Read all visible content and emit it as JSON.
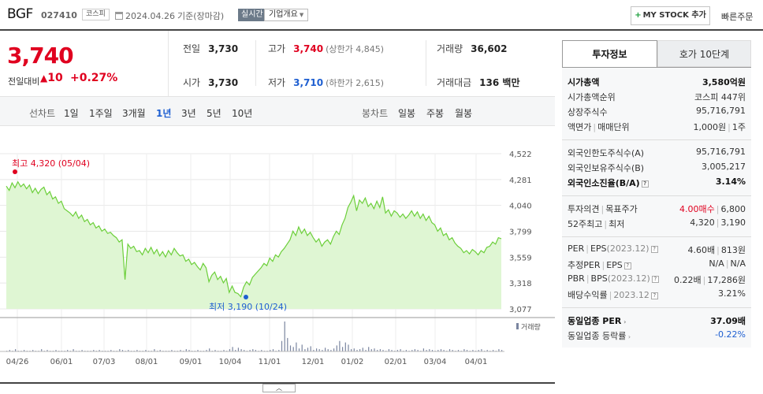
{
  "header": {
    "name": "BGF",
    "code": "027410",
    "market": "코스피",
    "date": "2024.04.26",
    "basis": "기준(장마감)",
    "realtime": "실시간",
    "company_overview": "기업개요",
    "mystock_label": "MY STOCK 추가",
    "quick_order": "빠른주문"
  },
  "price": {
    "current": "3,740",
    "compare_label": "전일대비",
    "change": "10",
    "change_rate": "+0.27%"
  },
  "quotes": {
    "prev_label": "전일",
    "prev": "3,730",
    "high_label": "고가",
    "high": "3,740",
    "upper_limit": "(상한가 4,845)",
    "volume_label": "거래량",
    "volume": "36,602",
    "open_label": "시가",
    "open": "3,730",
    "low_label": "저가",
    "low": "3,710",
    "lower_limit": "(하한가 2,615)",
    "amount_label": "거래대금",
    "amount": "136 백만"
  },
  "periods": {
    "line_chart_label": "선차트",
    "line_items": [
      "1일",
      "1주일",
      "3개월",
      "1년",
      "3년",
      "5년",
      "10년"
    ],
    "active": "1년",
    "candle_chart_label": "봉차트",
    "candle_items": [
      "일봉",
      "주봉",
      "월봉"
    ]
  },
  "chart_data": {
    "type": "area",
    "x_tick_labels": [
      "04/26",
      "06/01",
      "07/03",
      "08/01",
      "09/01",
      "10/04",
      "11/01",
      "12/01",
      "01/02",
      "02/01",
      "03/04",
      "04/01"
    ],
    "y_tick_labels": [
      "4,522",
      "4,281",
      "4,040",
      "3,799",
      "3,559",
      "3,318",
      "3,077"
    ],
    "ylim": [
      3077,
      4522
    ],
    "series": [
      {
        "values": [
          4220,
          4180,
          4250,
          4205,
          4260,
          4215,
          4240,
          4195,
          4230,
          4160,
          4200,
          4150,
          4190,
          4210,
          4140,
          4170,
          4100,
          4120,
          4060,
          4080,
          4010,
          3990,
          3970,
          3940,
          3980,
          3920,
          3950,
          3890,
          3910,
          3860,
          3880,
          3830,
          3850,
          3800,
          3820,
          3780,
          3790,
          3760,
          3740,
          3700,
          3720,
          3350,
          3680,
          3640,
          3660,
          3610,
          3620,
          3580,
          3640,
          3600,
          3650,
          3590,
          3630,
          3570,
          3610,
          3560,
          3620,
          3580,
          3640,
          3600,
          3570,
          3580,
          3520,
          3540,
          3490,
          3510,
          3470,
          3440,
          3500,
          3460,
          3330,
          3390,
          3420,
          3350,
          3380,
          3320,
          3360,
          3230,
          3290,
          3230,
          3220,
          3190,
          3280,
          3330,
          3300,
          3370,
          3400,
          3430,
          3460,
          3500,
          3480,
          3550,
          3520,
          3580,
          3560,
          3610,
          3640,
          3680,
          3720,
          3800,
          3760,
          3840,
          3780,
          3820,
          3760,
          3790,
          3740,
          3700,
          3730,
          3660,
          3700,
          3720,
          3680,
          3750,
          3800,
          3770,
          3860,
          3920,
          4020,
          4070,
          4130,
          3990,
          4090,
          4060,
          4110,
          4030,
          4060,
          4010,
          4080,
          4020,
          4120,
          3970,
          4000,
          3940,
          3990,
          3970,
          3930,
          3960,
          3920,
          3950,
          3990,
          3940,
          3980,
          3920,
          3960,
          3900,
          3940,
          3880,
          3860,
          3800,
          3830,
          3760,
          3780,
          3720,
          3740,
          3690,
          3660,
          3640,
          3600,
          3620,
          3590,
          3630,
          3610,
          3580,
          3620,
          3600,
          3650,
          3660,
          3700,
          3680,
          3740,
          3730
        ],
        "max_label": "최고 4,320 (05/04)",
        "min_label": "최저 3,190 (10/24)"
      }
    ],
    "volume_label": "거래량",
    "volume_values": [
      1,
      2,
      1,
      3,
      1,
      1,
      2,
      1,
      1,
      2,
      1,
      1,
      3,
      1,
      2,
      1,
      1,
      2,
      1,
      1,
      1,
      2,
      1,
      3,
      1,
      1,
      2,
      1,
      1,
      1,
      2,
      1,
      2,
      1,
      1,
      1,
      2,
      1,
      1,
      3,
      2,
      1,
      2,
      1,
      1,
      2,
      1,
      1,
      2,
      1,
      1,
      3,
      1,
      2,
      1,
      1,
      1,
      2,
      1,
      1,
      2,
      1,
      3,
      2,
      1,
      1,
      2,
      1,
      1,
      2,
      4,
      1,
      2,
      1,
      1,
      2,
      1,
      3,
      6,
      2,
      5,
      3,
      2,
      1,
      2,
      3,
      2,
      1,
      2,
      1,
      1,
      2,
      3,
      1,
      2,
      14,
      40,
      18,
      8,
      6,
      12,
      4,
      9,
      3,
      5,
      7,
      2,
      4,
      3,
      2,
      5,
      3,
      2,
      4,
      8,
      14,
      6,
      12,
      9,
      3,
      4,
      2,
      3,
      5,
      2,
      6,
      3,
      4,
      2,
      3,
      2,
      1,
      3,
      2,
      1,
      2,
      3,
      1,
      2,
      1,
      2,
      3,
      2,
      1,
      4,
      2,
      3,
      2,
      1,
      2,
      3,
      2,
      1,
      3,
      2,
      1,
      2,
      1,
      3,
      2,
      1,
      2,
      1,
      2,
      3,
      1,
      2,
      1,
      2,
      1,
      3,
      2
    ]
  },
  "info_tabs": [
    "투자정보",
    "호가 10단계"
  ],
  "info": {
    "market_cap_label": "시가총액",
    "market_cap": "3,580억원",
    "cap_rank_label": "시가총액순위",
    "cap_rank": "코스피 447위",
    "shares_label": "상장주식수",
    "shares": "95,716,791",
    "facevalue_label": "액면가",
    "unit_label": "매매단위",
    "facevalue": "1,000원",
    "unit": "1주",
    "foreign_limit_label": "외국인한도주식수(A)",
    "foreign_limit": "95,716,791",
    "foreign_hold_label": "외국인보유주식수(B)",
    "foreign_hold": "3,005,217",
    "foreign_ratio_label": "외국인소진율(B/A)",
    "foreign_ratio": "3.14%",
    "opinion_label": "투자의견",
    "target_label": "목표주가",
    "opinion": "4.00매수",
    "target": "6,800",
    "week52_high_label": "52주최고",
    "week52_low_label": "최저",
    "week52_high": "4,320",
    "week52_low": "3,190",
    "per_label": "PER",
    "eps_label": "EPS",
    "eps_year": "(2023.12)",
    "per": "4.60배",
    "eps": "813원",
    "est_per_label": "추정PER",
    "est_eps_label": "EPS",
    "est_per": "N/A",
    "est_eps": "N/A",
    "pbr_label": "PBR",
    "bps_label": "BPS",
    "bps_year": "(2023.12)",
    "pbr": "0.22배",
    "bps": "17,286원",
    "div_label": "배당수익률",
    "div_year": "2023.12",
    "div": "3.21%",
    "sector_per_label": "동일업종 PER",
    "sector_per": "37.09배",
    "sector_rate_label": "동일업종 등락률",
    "sector_rate": "-0.22%"
  },
  "colors": {
    "up": "#e0001f",
    "down": "#1e5fd1",
    "chart_line": "#6ccf3a",
    "chart_fill": "#dff6d3"
  }
}
